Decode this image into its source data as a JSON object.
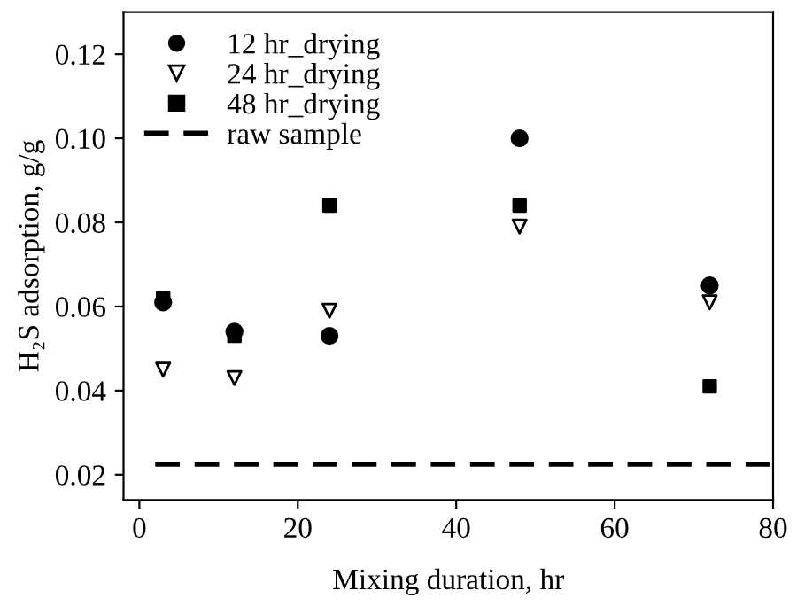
{
  "chart_data": {
    "type": "scatter",
    "xlabel": "Mixing duration, hr",
    "ylabel": "H₂S adsorption, g/g",
    "x": [
      3,
      12,
      24,
      48,
      72
    ],
    "series": [
      {
        "name": "12 hr_drying",
        "color": "#000000",
        "marker": "circle",
        "values": [
          0.061,
          0.054,
          0.053,
          0.1,
          0.065
        ]
      },
      {
        "name": "24 hr_drying",
        "color": "#000000",
        "marker": "triangle",
        "values": [
          0.045,
          0.043,
          0.059,
          0.079,
          0.061
        ]
      },
      {
        "name": "48 hr_drying",
        "color": "#000000",
        "marker": "square",
        "values": [
          0.062,
          0.053,
          0.084,
          0.084,
          0.041
        ]
      },
      {
        "name": "raw sample",
        "type": "line",
        "color": "#000000",
        "line_style": "dashed",
        "marker": "none",
        "x": [
          2,
          80
        ],
        "values": [
          0.0225,
          0.0225
        ]
      }
    ],
    "xlim": [
      -2,
      80
    ],
    "xticks": [
      0,
      20,
      40,
      60,
      80
    ],
    "ylim": [
      0.014,
      0.13
    ],
    "yticks": [
      0.02,
      0.04,
      0.06,
      0.08,
      {
        "value": 0.1,
        "label": "0.10"
      },
      0.12
    ],
    "grid": false,
    "legend": "top left"
  }
}
